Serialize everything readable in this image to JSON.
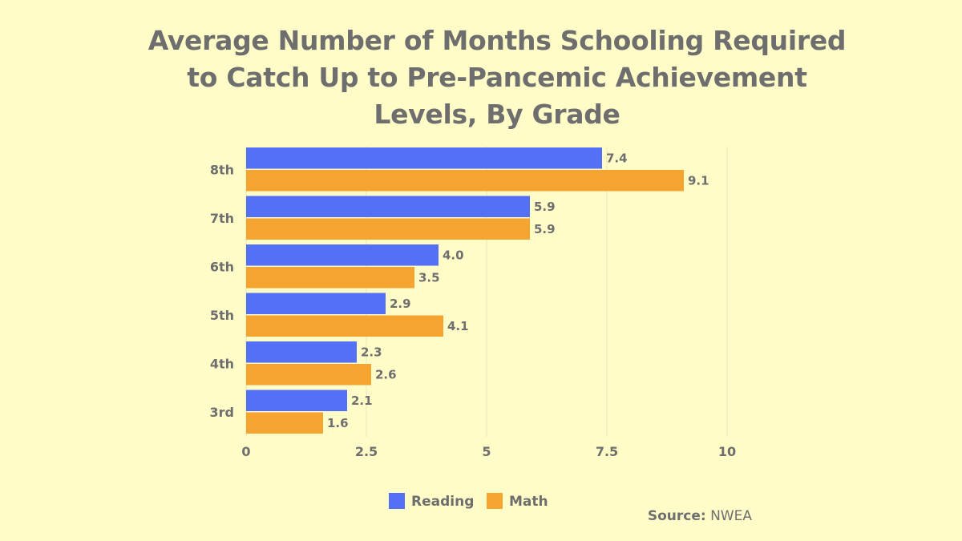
{
  "chart_data": {
    "type": "bar",
    "orientation": "horizontal",
    "title": "Average Number of Months Schooling Required to Catch Up to Pre-Pancemic Achievement Levels, By Grade",
    "categories": [
      "8th",
      "7th",
      "6th",
      "5th",
      "4th",
      "3rd"
    ],
    "series": [
      {
        "name": "Reading",
        "color": "#5470f5",
        "values": [
          7.4,
          5.9,
          4.0,
          2.9,
          2.3,
          2.1
        ],
        "labels": [
          "7.4",
          "5.9",
          "4.0",
          "2.9",
          "2.3",
          "2.1"
        ]
      },
      {
        "name": "Math",
        "color": "#f5a431",
        "values": [
          9.1,
          5.9,
          3.5,
          4.1,
          2.6,
          1.6
        ],
        "labels": [
          "9.1",
          "5.9",
          "3.5",
          "4.1",
          "2.6",
          "1.6"
        ]
      }
    ],
    "xlim": [
      0,
      10
    ],
    "xticks": [
      0,
      2.5,
      5,
      7.5,
      10
    ],
    "xtick_labels": [
      "0",
      "2.5",
      "5",
      "7.5",
      "10"
    ],
    "grid": true,
    "legend": "bottom-center"
  },
  "source": {
    "label": "Source:",
    "value": "NWEA"
  }
}
